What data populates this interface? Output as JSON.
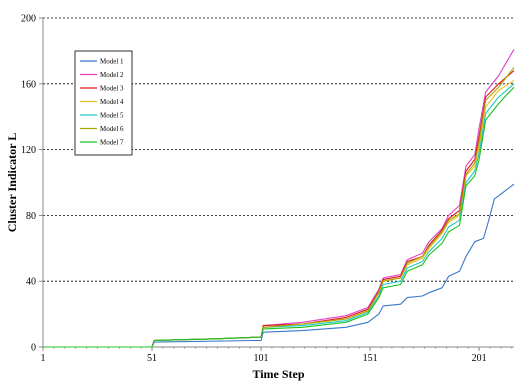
{
  "chart_data": {
    "type": "line",
    "title": "",
    "xlabel": "Time Step",
    "ylabel": "Cluster Indicator L",
    "xlim": [
      1,
      217
    ],
    "ylim": [
      0,
      200
    ],
    "x_ticks": [
      1,
      51,
      101,
      151,
      201
    ],
    "y_ticks": [
      0,
      40,
      80,
      120,
      160,
      200
    ],
    "grid": "horizontal dashed",
    "legend_position": "upper-left",
    "series": [
      {
        "name": "Model 1",
        "color": "#3b78c8",
        "points": [
          [
            1,
            0
          ],
          [
            51,
            0
          ],
          [
            52,
            3
          ],
          [
            101,
            4
          ],
          [
            102,
            9
          ],
          [
            120,
            10
          ],
          [
            140,
            12
          ],
          [
            150,
            15
          ],
          [
            155,
            20
          ],
          [
            157,
            25
          ],
          [
            165,
            26
          ],
          [
            168,
            30
          ],
          [
            175,
            31
          ],
          [
            178,
            33
          ],
          [
            184,
            36
          ],
          [
            187,
            43
          ],
          [
            192,
            46
          ],
          [
            195,
            55
          ],
          [
            199,
            64
          ],
          [
            203,
            66
          ],
          [
            205,
            75
          ],
          [
            208,
            90
          ],
          [
            214,
            96
          ],
          [
            217,
            99
          ]
        ]
      },
      {
        "name": "Model 2",
        "color": "#e040c8",
        "points": [
          [
            1,
            0
          ],
          [
            51,
            0
          ],
          [
            52,
            4
          ],
          [
            80,
            5
          ],
          [
            101,
            6
          ],
          [
            102,
            13
          ],
          [
            120,
            15
          ],
          [
            140,
            19
          ],
          [
            150,
            24
          ],
          [
            155,
            35
          ],
          [
            157,
            42
          ],
          [
            165,
            44
          ],
          [
            168,
            53
          ],
          [
            175,
            57
          ],
          [
            178,
            64
          ],
          [
            184,
            72
          ],
          [
            187,
            80
          ],
          [
            192,
            86
          ],
          [
            195,
            110
          ],
          [
            199,
            117
          ],
          [
            201,
            133
          ],
          [
            204,
            155
          ],
          [
            210,
            165
          ],
          [
            217,
            181
          ]
        ]
      },
      {
        "name": "Model 3",
        "color": "#e01818",
        "points": [
          [
            1,
            0
          ],
          [
            51,
            0
          ],
          [
            52,
            4
          ],
          [
            80,
            5
          ],
          [
            101,
            6
          ],
          [
            102,
            13
          ],
          [
            120,
            14
          ],
          [
            140,
            18
          ],
          [
            150,
            23
          ],
          [
            155,
            34
          ],
          [
            157,
            41
          ],
          [
            165,
            43
          ],
          [
            168,
            52
          ],
          [
            175,
            55
          ],
          [
            178,
            62
          ],
          [
            184,
            71
          ],
          [
            187,
            78
          ],
          [
            192,
            83
          ],
          [
            195,
            107
          ],
          [
            199,
            114
          ],
          [
            201,
            128
          ],
          [
            204,
            152
          ],
          [
            210,
            160
          ],
          [
            217,
            168
          ]
        ]
      },
      {
        "name": "Model 4",
        "color": "#e8c020",
        "points": [
          [
            1,
            0
          ],
          [
            51,
            0
          ],
          [
            52,
            4
          ],
          [
            80,
            5
          ],
          [
            101,
            6
          ],
          [
            102,
            12
          ],
          [
            120,
            14
          ],
          [
            140,
            17
          ],
          [
            150,
            22
          ],
          [
            155,
            33
          ],
          [
            157,
            40
          ],
          [
            165,
            42
          ],
          [
            168,
            50
          ],
          [
            175,
            54
          ],
          [
            178,
            60
          ],
          [
            184,
            69
          ],
          [
            187,
            76
          ],
          [
            192,
            80
          ],
          [
            195,
            104
          ],
          [
            199,
            110
          ],
          [
            201,
            122
          ],
          [
            204,
            146
          ],
          [
            210,
            156
          ],
          [
            217,
            162
          ]
        ]
      },
      {
        "name": "Model 5",
        "color": "#20c8c8",
        "points": [
          [
            1,
            0
          ],
          [
            51,
            0
          ],
          [
            52,
            4
          ],
          [
            80,
            5
          ],
          [
            101,
            6
          ],
          [
            102,
            12
          ],
          [
            120,
            13
          ],
          [
            140,
            16
          ],
          [
            150,
            21
          ],
          [
            155,
            31
          ],
          [
            157,
            38
          ],
          [
            165,
            40
          ],
          [
            168,
            48
          ],
          [
            175,
            52
          ],
          [
            178,
            58
          ],
          [
            184,
            66
          ],
          [
            187,
            73
          ],
          [
            192,
            77
          ],
          [
            195,
            100
          ],
          [
            199,
            107
          ],
          [
            201,
            118
          ],
          [
            204,
            142
          ],
          [
            210,
            152
          ],
          [
            217,
            160
          ]
        ]
      },
      {
        "name": "Model 6",
        "color": "#a8a800",
        "points": [
          [
            1,
            0
          ],
          [
            51,
            0
          ],
          [
            52,
            4
          ],
          [
            80,
            5
          ],
          [
            101,
            6
          ],
          [
            102,
            12
          ],
          [
            120,
            14
          ],
          [
            140,
            17
          ],
          [
            150,
            22
          ],
          [
            155,
            33
          ],
          [
            157,
            40
          ],
          [
            165,
            42
          ],
          [
            168,
            51
          ],
          [
            175,
            55
          ],
          [
            178,
            61
          ],
          [
            184,
            70
          ],
          [
            187,
            77
          ],
          [
            192,
            81
          ],
          [
            195,
            105
          ],
          [
            199,
            112
          ],
          [
            201,
            125
          ],
          [
            204,
            150
          ],
          [
            210,
            158
          ],
          [
            217,
            170
          ]
        ]
      },
      {
        "name": "Model 7",
        "color": "#20c020",
        "points": [
          [
            1,
            0
          ],
          [
            51,
            0
          ],
          [
            52,
            4
          ],
          [
            80,
            5
          ],
          [
            101,
            6
          ],
          [
            102,
            11
          ],
          [
            120,
            12
          ],
          [
            140,
            15
          ],
          [
            150,
            20
          ],
          [
            155,
            30
          ],
          [
            157,
            36
          ],
          [
            165,
            38
          ],
          [
            168,
            46
          ],
          [
            175,
            50
          ],
          [
            178,
            56
          ],
          [
            184,
            63
          ],
          [
            187,
            70
          ],
          [
            192,
            74
          ],
          [
            195,
            98
          ],
          [
            199,
            104
          ],
          [
            201,
            114
          ],
          [
            204,
            138
          ],
          [
            210,
            148
          ],
          [
            217,
            158
          ]
        ]
      }
    ]
  }
}
